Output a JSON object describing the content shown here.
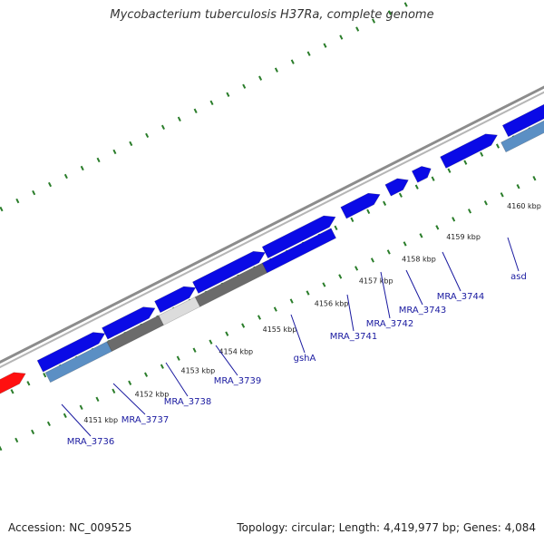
{
  "title": "Mycobacterium tuberculosis H37Ra, complete genome",
  "footer": {
    "accession": "Accession: NC_009525",
    "summary": "Topology: circular; Length: 4,419,977 bp; Genes: 4,084"
  },
  "colors": {
    "strand_plus": "#0a0ae6",
    "strand_minus": "#5b8fc4",
    "gene_gray_dark": "#6b6b6b",
    "gene_gray_light": "#dcdcdc",
    "gene_red": "#ff1010",
    "tick": "#2a7d2a",
    "backbone": "#8c8c8c",
    "label": "#1a1aa0"
  },
  "kbp_ticks": [
    {
      "label": "4151 kbp"
    },
    {
      "label": "4152 kbp"
    },
    {
      "label": "4153 kbp"
    },
    {
      "label": "4154 kbp"
    },
    {
      "label": "4155 kbp"
    },
    {
      "label": "4156 kbp"
    },
    {
      "label": "4157 kbp"
    },
    {
      "label": "4158 kbp"
    },
    {
      "label": "4159 kbp"
    },
    {
      "label": "4160 kbp"
    }
  ],
  "gene_labels": [
    {
      "name": "MRA_3736"
    },
    {
      "name": "MRA_3737"
    },
    {
      "name": "MRA_3738"
    },
    {
      "name": "MRA_3739"
    },
    {
      "name": "gshA"
    },
    {
      "name": "MRA_3741"
    },
    {
      "name": "MRA_3742"
    },
    {
      "name": "MRA_3743"
    },
    {
      "name": "MRA_3744"
    },
    {
      "name": "asd"
    }
  ]
}
